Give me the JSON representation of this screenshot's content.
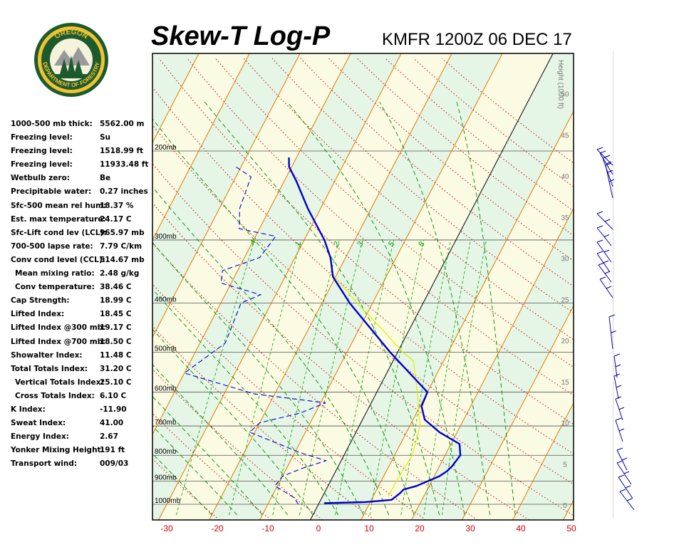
{
  "header": {
    "title": "Skew-T Log-P",
    "station_time": "KMFR 1200Z 06 DEC 17"
  },
  "logo": {
    "top_text": "OREGON",
    "bottom_text": "DEPARTMENT OF FORESTRY"
  },
  "indices": [
    {
      "label": "1000-500 mb thick:",
      "value": "5562.00 m"
    },
    {
      "label": "Freezing level:",
      "value": "Su"
    },
    {
      "label": "Freezing level:",
      "value": "1518.99 ft"
    },
    {
      "label": "Freezing level:",
      "value": "11933.48 ft"
    },
    {
      "label": "Wetbulb zero:",
      "value": "Be"
    },
    {
      "label": "Precipitable water:",
      "value": "0.27 inches"
    },
    {
      "label": "Sfc-500 mean rel hum:",
      "value": "18.37 %"
    },
    {
      "label": "Est. max temperature:",
      "value": "24.17 C"
    },
    {
      "label": "Sfc-Lift cond lev (LCL):",
      "value": "965.97 mb"
    },
    {
      "label": "700-500 lapse rate:",
      "value": "7.79 C/km"
    },
    {
      "label": "Conv cond level (CCL):",
      "value": "514.67 mb"
    },
    {
      "label": "Mean mixing ratio:",
      "value": "2.48 g/kg",
      "indent": true
    },
    {
      "label": "Conv temperature:",
      "value": "38.46 C",
      "indent": true
    },
    {
      "label": "Cap Strength:",
      "value": "18.99 C"
    },
    {
      "label": "Lifted Index:",
      "value": "18.45 C"
    },
    {
      "label": "Lifted Index @300 mb:",
      "value": "19.17 C"
    },
    {
      "label": "Lifted Index @700 mb:",
      "value": "18.50 C"
    },
    {
      "label": "Showalter Index:",
      "value": "11.48 C"
    },
    {
      "label": "Total Totals Index:",
      "value": "31.20 C"
    },
    {
      "label": "Vertical Totals Index:",
      "value": "25.10 C",
      "indent": true
    },
    {
      "label": "Cross Totals Index:",
      "value": "6.10 C",
      "indent": true
    },
    {
      "label": "K Index:",
      "value": "-11.90"
    },
    {
      "label": "Sweat Index:",
      "value": "41.00"
    },
    {
      "label": "Energy Index:",
      "value": "2.67"
    },
    {
      "label": "Yonker Mixing Height:",
      "value": "191 ft"
    },
    {
      "label": "Transport wind:",
      "value": "009/03"
    }
  ],
  "colors": {
    "temperature": "#0000cc",
    "dewpoint": "#0000cc",
    "parcel": "#e8e800",
    "isotherm": "#e07800",
    "dry_adiabat": "#c00000",
    "moist_adiabat": "#008800",
    "mixing_ratio": "#00a000",
    "isobar": "#000000",
    "wind_barb": "#0000aa",
    "band_green": "#e6f6e6",
    "band_yellow": "#fbfbe4"
  },
  "chart_data": {
    "type": "skew-t log-p",
    "x_axis": {
      "label": "",
      "range_c": [
        -34,
        50
      ],
      "ticks": [
        -30,
        -20,
        -10,
        0,
        10,
        20,
        30,
        40,
        50
      ]
    },
    "pressure_levels": [
      {
        "label": "200mb",
        "p": 200
      },
      {
        "label": "300mb",
        "p": 300
      },
      {
        "label": "400mb",
        "p": 400
      },
      {
        "label": "500mb",
        "p": 500
      },
      {
        "label": "600mb",
        "p": 600
      },
      {
        "label": "700mb",
        "p": 700
      },
      {
        "label": "800mb",
        "p": 800
      },
      {
        "label": "900mb",
        "p": 900
      },
      {
        "label": "1000mb",
        "p": 1000
      }
    ],
    "height_axis": {
      "label": "Height (1000 ft)",
      "ticks": [
        0,
        5,
        10,
        15,
        20,
        25,
        30,
        35,
        40,
        45,
        50
      ]
    },
    "mixing_ratio_labels": [
      ".4",
      "1",
      "2",
      "3",
      "5",
      "8"
    ],
    "temperature_profile": [
      {
        "p": 995,
        "t": 1.0
      },
      {
        "p": 990,
        "t": 9.0
      },
      {
        "p": 980,
        "t": 14.0
      },
      {
        "p": 950,
        "t": 15.0
      },
      {
        "p": 935,
        "t": 15.3
      },
      {
        "p": 920,
        "t": 17.5
      },
      {
        "p": 880,
        "t": 21.0
      },
      {
        "p": 860,
        "t": 22.0
      },
      {
        "p": 840,
        "t": 22.5
      },
      {
        "p": 800,
        "t": 23.0
      },
      {
        "p": 760,
        "t": 21.7
      },
      {
        "p": 720,
        "t": 16.5
      },
      {
        "p": 680,
        "t": 12.3
      },
      {
        "p": 640,
        "t": 10.3
      },
      {
        "p": 600,
        "t": 10.0
      },
      {
        "p": 500,
        "t": -1.5
      },
      {
        "p": 400,
        "t": -14.5
      },
      {
        "p": 355,
        "t": -20.5
      },
      {
        "p": 325,
        "t": -23.0
      },
      {
        "p": 300,
        "t": -26.0
      },
      {
        "p": 260,
        "t": -32.5
      },
      {
        "p": 230,
        "t": -37.5
      },
      {
        "p": 215,
        "t": -40.5
      },
      {
        "p": 206,
        "t": -41.5
      }
    ],
    "dewpoint_profile": [
      {
        "p": 1000,
        "t": -4.0
      },
      {
        "p": 970,
        "t": -5.5
      },
      {
        "p": 920,
        "t": -10.5
      },
      {
        "p": 880,
        "t": -10.0
      },
      {
        "p": 850,
        "t": -7.0
      },
      {
        "p": 820,
        "t": -3.0
      },
      {
        "p": 790,
        "t": -9.0
      },
      {
        "p": 760,
        "t": -14.0
      },
      {
        "p": 720,
        "t": -21.0
      },
      {
        "p": 690,
        "t": -20.0
      },
      {
        "p": 660,
        "t": -13.0
      },
      {
        "p": 630,
        "t": -9.0
      },
      {
        "p": 605,
        "t": -24.0
      },
      {
        "p": 550,
        "t": -40.0
      },
      {
        "p": 480,
        "t": -35.0
      },
      {
        "p": 400,
        "t": -36.0
      },
      {
        "p": 385,
        "t": -33.0
      },
      {
        "p": 365,
        "t": -42.0
      },
      {
        "p": 345,
        "t": -43.0
      },
      {
        "p": 325,
        "t": -37.0
      },
      {
        "p": 295,
        "t": -36.0
      },
      {
        "p": 285,
        "t": -44.0
      },
      {
        "p": 260,
        "t": -46.0
      },
      {
        "p": 225,
        "t": -47.0
      },
      {
        "p": 215,
        "t": -51.0
      }
    ],
    "parcel_profile": [
      {
        "p": 965,
        "t": 13.0
      },
      {
        "p": 900,
        "t": 13.0
      },
      {
        "p": 800,
        "t": 13.5
      },
      {
        "p": 700,
        "t": 12.0
      },
      {
        "p": 600,
        "t": 8.0
      },
      {
        "p": 520,
        "t": 4.0
      },
      {
        "p": 500,
        "t": 1.0
      },
      {
        "p": 450,
        "t": -5.5
      },
      {
        "p": 400,
        "t": -13.0
      },
      {
        "p": 350,
        "t": -21.0
      }
    ]
  }
}
